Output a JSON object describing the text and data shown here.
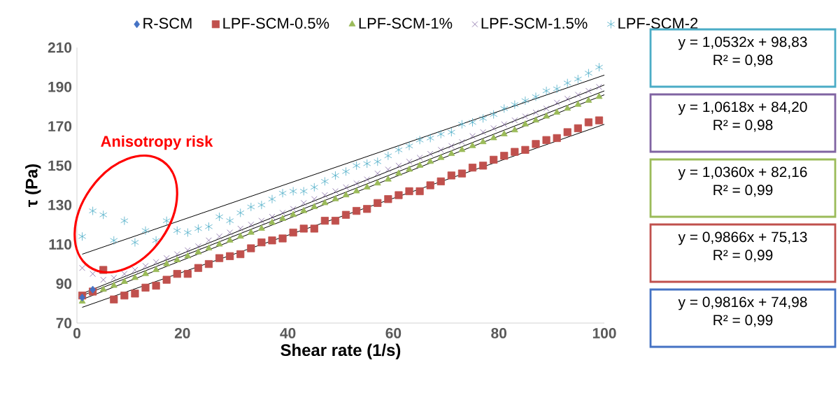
{
  "chart_data": {
    "type": "scatter",
    "xlabel": "Shear rate (1/s)",
    "ylabel": "τ (Pa)",
    "xlim": [
      0,
      100
    ],
    "ylim": [
      70,
      210
    ],
    "xticks": [
      0,
      20,
      40,
      60,
      80,
      100
    ],
    "yticks": [
      70,
      90,
      110,
      130,
      150,
      170,
      190,
      210
    ],
    "legend": "top",
    "x": [
      1,
      3,
      5,
      7,
      9,
      11,
      13,
      15,
      17,
      19,
      21,
      23,
      25,
      27,
      29,
      31,
      33,
      35,
      37,
      39,
      41,
      43,
      45,
      47,
      49,
      51,
      53,
      55,
      57,
      59,
      61,
      63,
      65,
      67,
      69,
      71,
      73,
      75,
      77,
      79,
      81,
      83,
      85,
      87,
      89,
      91,
      93,
      95,
      97,
      99
    ],
    "series": [
      {
        "name": "R-SCM",
        "color": "#4472c4",
        "marker": "diamond",
        "x": [
          1,
          3
        ],
        "values": [
          83,
          87
        ]
      },
      {
        "name": "LPF-SCM-0.5%",
        "color": "#c0504d",
        "marker": "square",
        "values": [
          84,
          86,
          97,
          82,
          84,
          85,
          88,
          89,
          92,
          95,
          95,
          98,
          100,
          103,
          104,
          105,
          108,
          111,
          112,
          113,
          116,
          118,
          118,
          122,
          122,
          125,
          127,
          128,
          131,
          133,
          135,
          137,
          137,
          140,
          142,
          145,
          146,
          149,
          150,
          153,
          155,
          157,
          158,
          161,
          163,
          164,
          167,
          169,
          172,
          173
        ]
      },
      {
        "name": "LPF-SCM-1%",
        "color": "#9bbb59",
        "marker": "triangle",
        "values": [
          81,
          null,
          87,
          89,
          91,
          93,
          95,
          97,
          100,
          102,
          104,
          106,
          108,
          110,
          112,
          114,
          116,
          118,
          121,
          123,
          125,
          127,
          129,
          131,
          133,
          135,
          137,
          139,
          141,
          143,
          146,
          148,
          150,
          152,
          154,
          156,
          158,
          160,
          162,
          164,
          166,
          168,
          171,
          173,
          175,
          177,
          179,
          181,
          183,
          185
        ]
      },
      {
        "name": "LPF-SCM-1.5%",
        "color": "#8064a2",
        "marker": "cross",
        "values": [
          98,
          95,
          92,
          93,
          95,
          97,
          99,
          101,
          103,
          105,
          107,
          109,
          112,
          114,
          116,
          118,
          120,
          122,
          124,
          126,
          128,
          131,
          133,
          135,
          137,
          139,
          141,
          143,
          146,
          148,
          150,
          152,
          154,
          156,
          158,
          160,
          162,
          165,
          167,
          169,
          171,
          173,
          175,
          177,
          179,
          182,
          184,
          186,
          188,
          190
        ]
      },
      {
        "name": "LPF-SCM-2",
        "color": "#4bacc6",
        "values": [
          114,
          127,
          125,
          112,
          122,
          111,
          117,
          112,
          122,
          117,
          116,
          118,
          119,
          124,
          122,
          126,
          129,
          130,
          133,
          136,
          137,
          137,
          139,
          142,
          145,
          147,
          150,
          151,
          152,
          155,
          158,
          160,
          163,
          164,
          166,
          167,
          171,
          172,
          174,
          176,
          179,
          181,
          183,
          185,
          188,
          189,
          192,
          194,
          197,
          200
        ]
      },
      {
        "type": "line",
        "color": "#000000",
        "marker": "none",
        "line_style": "solid",
        "x": [
          1,
          100
        ],
        "values": [
          105,
          196
        ]
      },
      {
        "type": "line",
        "color": "#000000",
        "marker": "none",
        "line_style": "solid",
        "x": [
          1,
          100
        ],
        "values": [
          85,
          191
        ]
      },
      {
        "type": "line",
        "color": "#000000",
        "marker": "none",
        "line_style": "solid",
        "x": [
          1,
          100
        ],
        "values": [
          84,
          188
        ]
      },
      {
        "type": "line",
        "color": "#000000",
        "marker": "none",
        "line_style": "solid",
        "x": [
          1,
          100
        ],
        "values": [
          82,
          186
        ]
      },
      {
        "type": "line",
        "color": "#000000",
        "marker": "none",
        "line_style": "solid",
        "x": [
          1,
          100
        ],
        "values": [
          78,
          171
        ]
      }
    ],
    "annotations": [
      "Anisotropy risk",
      "y = 1,0532x + 98,83",
      "R² = 0,98",
      "y = 1,0618x + 84,20",
      "R² = 0,98",
      "y = 1,0360x + 82,16",
      "R² = 0,99",
      "y = 0,9866x + 75,13",
      "R² = 0,99",
      "y = 0,9816x + 74,98",
      "R² = 0,99"
    ]
  }
}
